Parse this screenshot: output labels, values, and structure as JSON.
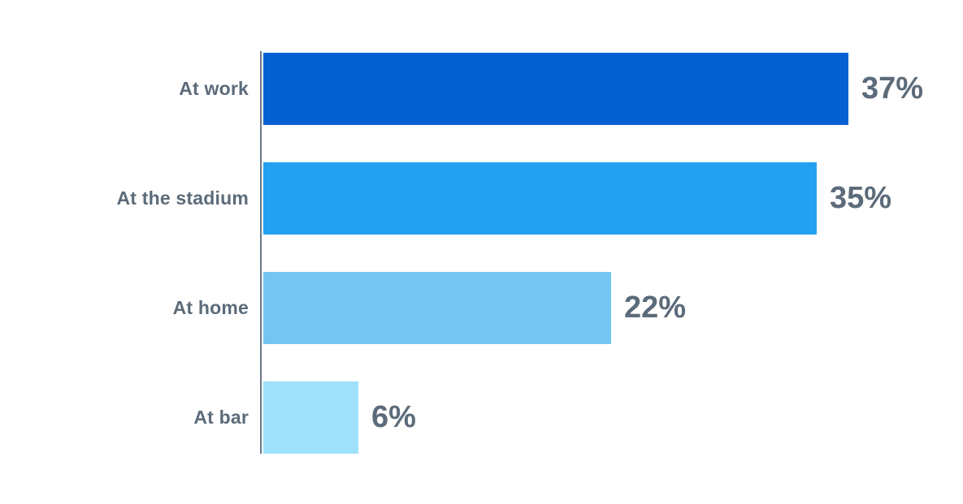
{
  "chart_data": {
    "type": "bar",
    "orientation": "horizontal",
    "title": "",
    "xlabel": "",
    "ylabel": "",
    "grid": false,
    "legend": false,
    "categories": [
      "At work",
      "At the stadium",
      "At home",
      "At bar"
    ],
    "values": [
      37,
      35,
      22,
      6
    ],
    "value_labels": [
      "37%",
      "35%",
      "22%",
      "6%"
    ],
    "bar_colors": [
      "#0561D2",
      "#23A0F2",
      "#74C6F1",
      "#9EE1FB"
    ],
    "xlim": [
      0,
      38
    ]
  },
  "styles": {
    "background": "#FFFFFF",
    "text_color": "#5C6B7A",
    "axis_color": "#6A7889"
  }
}
